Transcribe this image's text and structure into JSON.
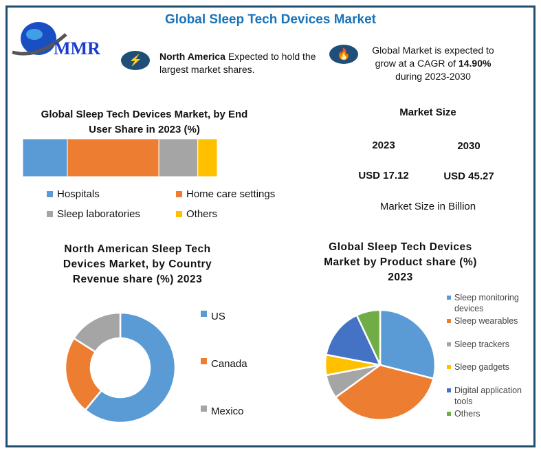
{
  "title": "Global Sleep Tech Devices Market",
  "logo": {
    "text": "MMR"
  },
  "highlights": [
    {
      "icon": "lightning-icon",
      "bold": "North America",
      "text": " Expected to hold the largest market shares."
    },
    {
      "icon": "flame-icon",
      "line1": "Global Market is expected to",
      "line2_pre": "grow at a CAGR of ",
      "line2_bold": "14.90%",
      "line3": "during 2023-2030"
    }
  ],
  "market_size": {
    "title": "Market Size",
    "years": [
      "2023",
      "2030"
    ],
    "values": [
      "USD 17.12",
      "USD 45.27"
    ],
    "unit_label": "Market Size in Billion"
  },
  "colors": {
    "blue": "#5b9bd5",
    "orange": "#ed7d31",
    "gray": "#a5a5a5",
    "yellow": "#ffc000",
    "darkblue": "#4472c4",
    "green": "#70ad47"
  },
  "chart_data": [
    {
      "type": "bar",
      "stacked": true,
      "title": "Global Sleep Tech Devices Market, by End User Share in 2023 (%)",
      "categories": [
        "Hospitals",
        "Home care settings",
        "Sleep laboratories",
        "Others"
      ],
      "values": [
        23,
        47,
        20,
        10
      ]
    },
    {
      "type": "pie",
      "donut": true,
      "title": "North American  Sleep Tech Devices Market, by Country Revenue share (%) 2023",
      "categories": [
        "US",
        "Canada",
        "Mexico"
      ],
      "values": [
        61,
        23,
        16
      ]
    },
    {
      "type": "pie",
      "title": "Global Sleep Tech Devices Market by Product share (%) 2023",
      "categories": [
        "Sleep monitoring devices",
        "Sleep wearables",
        "Sleep trackers",
        "Sleep gadgets",
        "Digital application tools",
        "Others"
      ],
      "values": [
        29,
        36,
        7,
        6,
        15,
        7
      ]
    }
  ]
}
